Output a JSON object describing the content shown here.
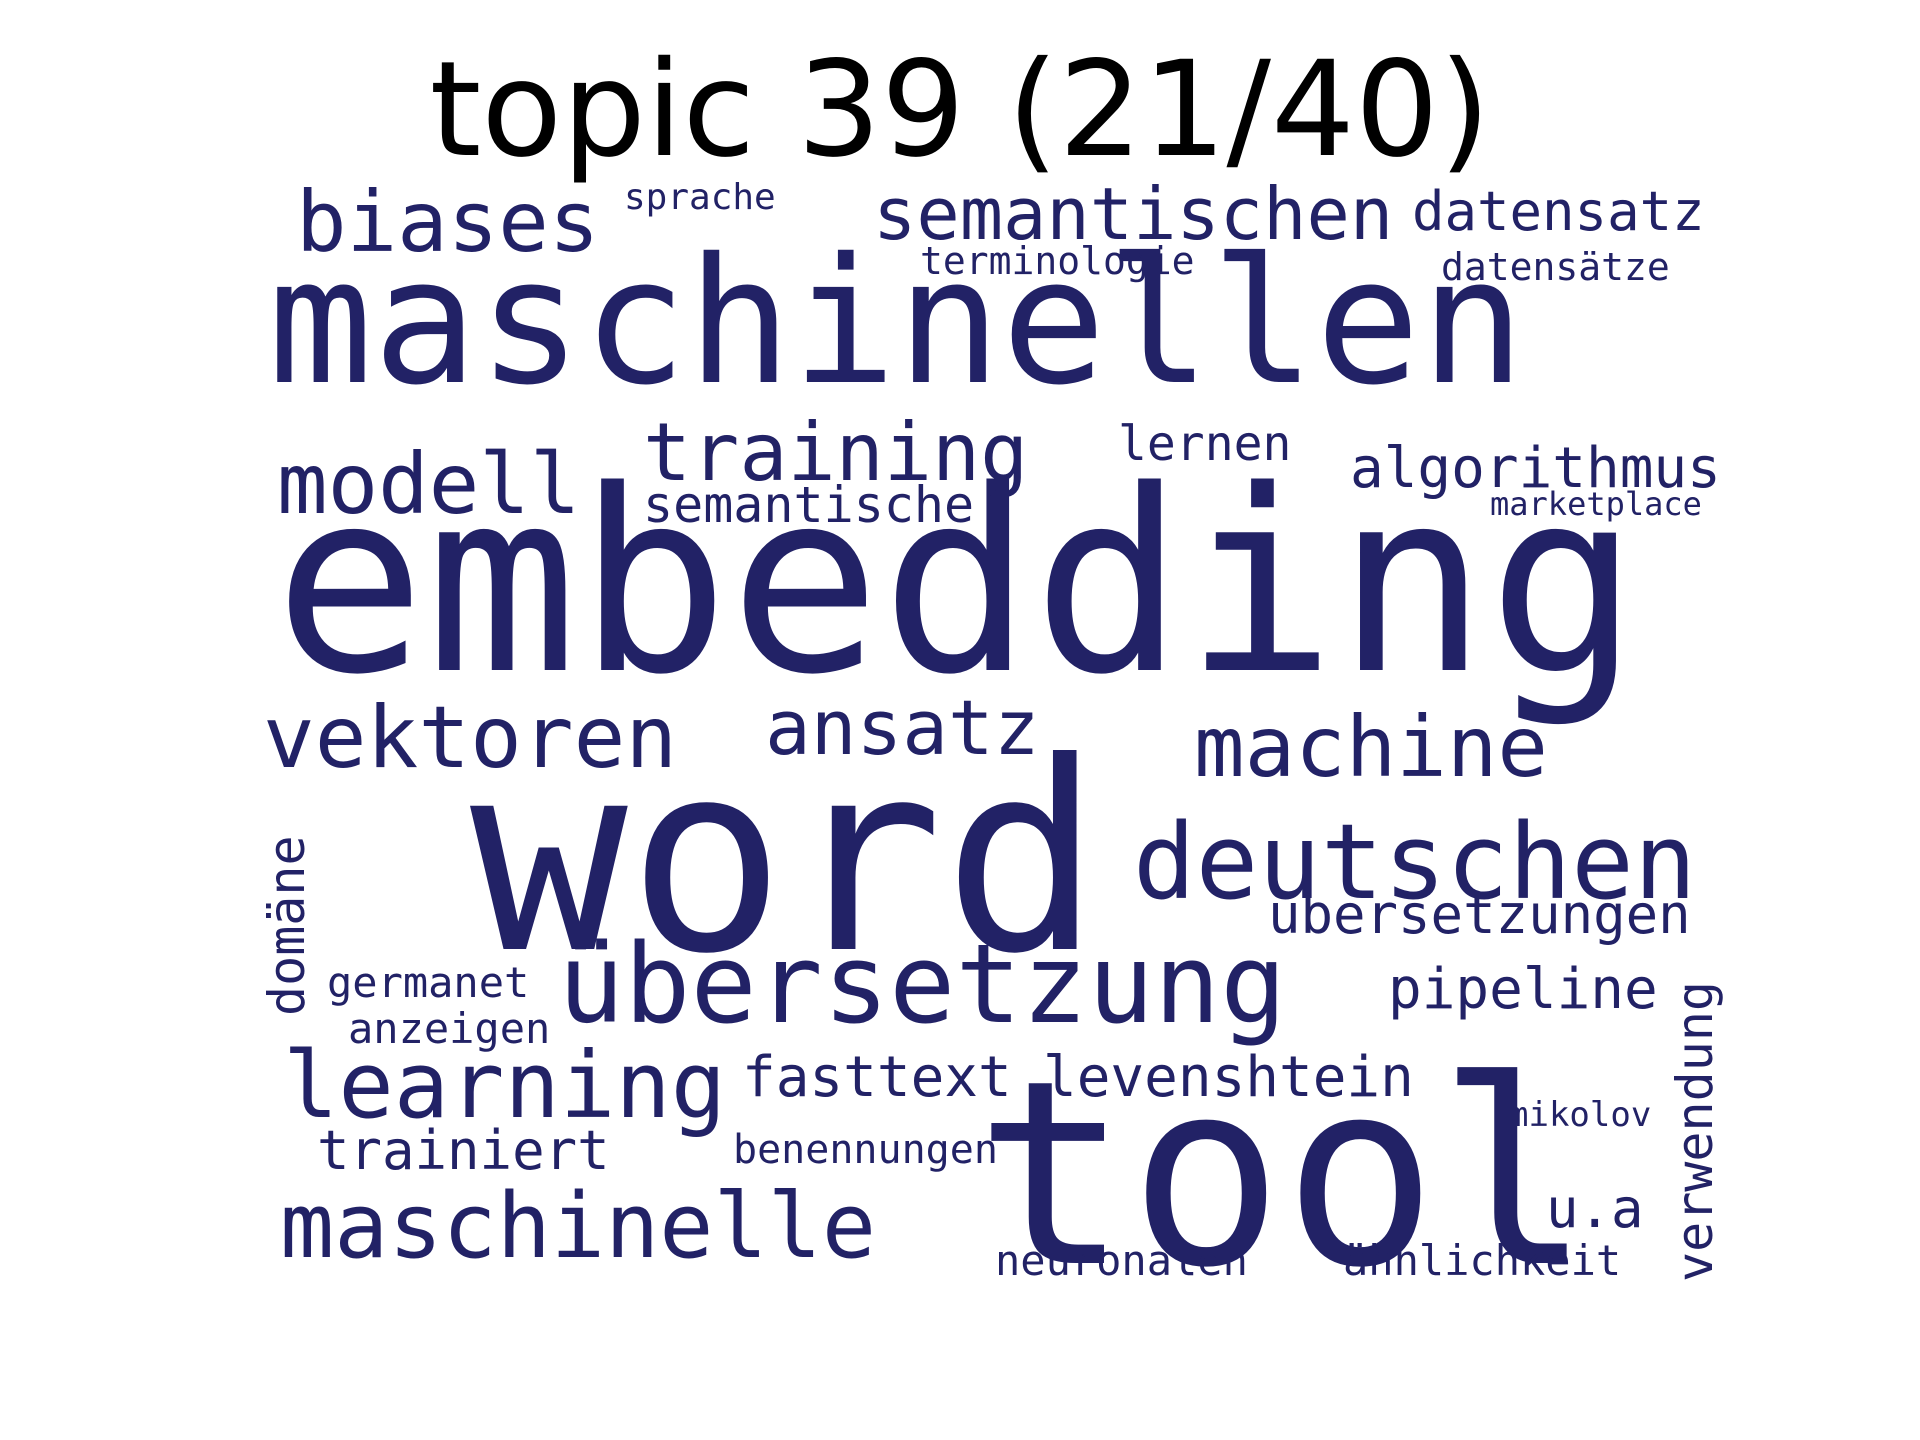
{
  "title": "topic 39 (21/40)",
  "word_color": "#222266",
  "words": [
    "maschinellen",
    "embedding",
    "word",
    "tool",
    "übersetzung",
    "deutschen",
    "biases",
    "semantischen",
    "datensatz",
    "sprache",
    "terminologie",
    "datensätze",
    "modell",
    "training",
    "lernen",
    "algorithmus",
    "semantische",
    "marketplace",
    "vektoren",
    "ansatz",
    "machine",
    "übersetzungen",
    "domäne",
    "germanet",
    "anzeigen",
    "pipeline",
    "verwendung",
    "learning",
    "fasttext",
    "levenshtein",
    "trainiert",
    "benennungen",
    "mikolov",
    "maschinelle",
    "u.a",
    "neuronalen",
    "ähnlichkeit"
  ]
}
